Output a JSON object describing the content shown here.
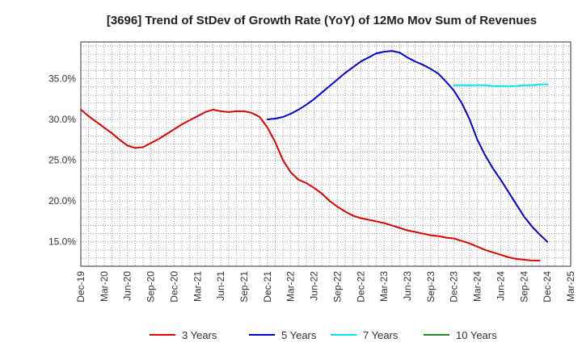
{
  "chart_data": {
    "type": "line",
    "title": "[3696]  Trend of StDev of Growth Rate (YoY) of 12Mo Mov Sum of Revenues",
    "xlabel": "",
    "ylabel": "",
    "x_ticks": [
      "Dec-19",
      "Mar-20",
      "Jun-20",
      "Sep-20",
      "Dec-20",
      "Mar-21",
      "Jun-21",
      "Sep-21",
      "Dec-21",
      "Mar-22",
      "Jun-22",
      "Sep-22",
      "Dec-22",
      "Mar-23",
      "Jun-23",
      "Sep-23",
      "Dec-23",
      "Mar-24",
      "Jun-24",
      "Sep-24",
      "Dec-24",
      "Mar-25"
    ],
    "y_ticks": [
      "15.0%",
      "20.0%",
      "25.0%",
      "30.0%",
      "35.0%"
    ],
    "y_tick_values": [
      15,
      20,
      25,
      30,
      35
    ],
    "ylim": [
      12.0,
      39.5
    ],
    "grid": true,
    "legend_position": "bottom",
    "series": [
      {
        "name": "3 Years",
        "color": "#dd0000",
        "start_index": 0,
        "values": [
          31.2,
          30.4,
          29.7,
          29.0,
          28.3,
          27.5,
          26.8,
          26.5,
          26.6,
          27.1,
          27.6,
          28.2,
          28.8,
          29.4,
          29.9,
          30.4,
          30.9,
          31.2,
          31.0,
          30.9,
          31.0,
          31.0,
          30.8,
          30.3,
          29.0,
          27.2,
          25.0,
          23.5,
          22.6,
          22.2,
          21.6,
          20.9,
          20.0,
          19.3,
          18.7,
          18.2,
          17.9,
          17.7,
          17.5,
          17.3,
          17.0,
          16.7,
          16.4,
          16.2,
          16.0,
          15.8,
          15.7,
          15.5,
          15.4,
          15.1,
          14.8,
          14.4,
          14.0,
          13.7,
          13.4,
          13.1,
          12.9,
          12.8,
          12.7,
          12.7
        ]
      },
      {
        "name": "5 Years",
        "color": "#0000cc",
        "start_index": 24,
        "values": [
          30.0,
          30.1,
          30.3,
          30.7,
          31.2,
          31.8,
          32.5,
          33.3,
          34.1,
          34.9,
          35.7,
          36.4,
          37.1,
          37.6,
          38.1,
          38.3,
          38.4,
          38.2,
          37.6,
          37.1,
          36.7,
          36.2,
          35.6,
          34.6,
          33.5,
          32.0,
          30.0,
          27.5,
          25.6,
          24.0,
          22.6,
          21.1,
          19.6,
          18.1,
          16.9,
          15.9,
          15.0
        ]
      },
      {
        "name": "7 Years",
        "color": "#00e5ee",
        "start_index": 48,
        "values": [
          34.2,
          34.2,
          34.2,
          34.2,
          34.2,
          34.1,
          34.1,
          34.1,
          34.1,
          34.2,
          34.2,
          34.3,
          34.3
        ]
      },
      {
        "name": "10 Years",
        "color": "#228b22",
        "start_index": 0,
        "values": []
      }
    ]
  }
}
